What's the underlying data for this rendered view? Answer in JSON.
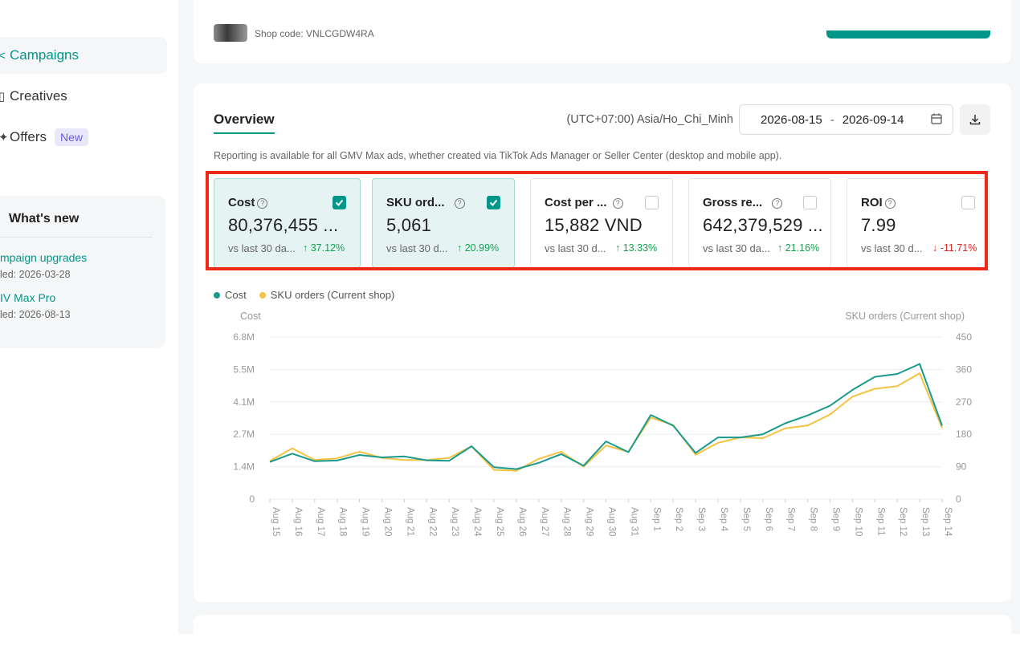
{
  "sidebar": {
    "nav": [
      {
        "label": "Campaigns",
        "icon": "campaign-icon"
      },
      {
        "label": "Creatives",
        "icon": "creatives-icon"
      },
      {
        "label": "Offers",
        "icon": "offers-icon",
        "badge": "New"
      }
    ],
    "whats_new": {
      "title": "What's new",
      "items": [
        {
          "link": "mpaign upgrades",
          "date": "led: 2026-03-28"
        },
        {
          "link": "IV Max Pro",
          "date": "led: 2026-08-13"
        }
      ]
    }
  },
  "shop": {
    "code_text": "Shop code: VNLCGDW4RA"
  },
  "overview": {
    "tab": "Overview",
    "timezone": "(UTC+07:00) Asia/Ho_Chi_Minh",
    "date_start": "2026-08-15",
    "date_sep": "-",
    "date_end": "2026-09-14",
    "note": "Reporting is available for all GMV Max ads, whether created via TikTok Ads Manager or Seller Center (desktop and mobile app)."
  },
  "metrics": [
    {
      "title": "Cost",
      "value": "80,376,455 ...",
      "compare": "vs last 30 da...",
      "delta": "37.12%",
      "direction": "up",
      "checked": true
    },
    {
      "title": "SKU ord...",
      "value": "5,061",
      "compare": "vs last 30 d...",
      "delta": "20.99%",
      "direction": "up",
      "checked": true
    },
    {
      "title": "Cost per ...",
      "value": "15,882 VND",
      "compare": "vs last 30 d...",
      "delta": "13.33%",
      "direction": "up",
      "checked": false
    },
    {
      "title": "Gross re...",
      "value": "642,379,529 ...",
      "compare": "vs last 30 da...",
      "delta": "21.16%",
      "direction": "up",
      "checked": false
    },
    {
      "title": "ROI",
      "value": "7.99",
      "compare": "vs last 30 d...",
      "delta": "-11.71%",
      "direction": "down",
      "checked": false
    }
  ],
  "colors": {
    "accent": "#00968a",
    "series_cost": "#1a9a8e",
    "series_sku": "#f5c242",
    "positive": "#12a150",
    "negative": "#d92a2a",
    "highlight": "#ee2a16"
  },
  "chart_data": {
    "type": "line",
    "legend": [
      "Cost",
      "SKU orders (Current shop)"
    ],
    "y_left_label": "Cost",
    "y_right_label": "SKU orders (Current shop)",
    "y_left_ticks": [
      "0",
      "1.4M",
      "2.7M",
      "4.1M",
      "5.5M",
      "6.8M"
    ],
    "y_right_ticks": [
      "0",
      "90",
      "180",
      "270",
      "360",
      "450"
    ],
    "y_left_max": 6.8,
    "y_right_max": 450,
    "x": [
      "Aug 15",
      "Aug 16",
      "Aug 17",
      "Aug 18",
      "Aug 19",
      "Aug 20",
      "Aug 21",
      "Aug 22",
      "Aug 23",
      "Aug 24",
      "Aug 25",
      "Aug 26",
      "Aug 27",
      "Aug 28",
      "Aug 29",
      "Aug 30",
      "Aug 31",
      "Sep 1",
      "Sep 2",
      "Sep 3",
      "Sep 4",
      "Sep 5",
      "Sep 6",
      "Sep 7",
      "Sep 8",
      "Sep 9",
      "Sep 10",
      "Sep 11",
      "Sep 12",
      "Sep 13",
      "Sep 14"
    ],
    "series": [
      {
        "name": "Cost",
        "axis": "left",
        "values": [
          1.56,
          1.91,
          1.59,
          1.62,
          1.85,
          1.75,
          1.79,
          1.63,
          1.61,
          2.22,
          1.34,
          1.26,
          1.52,
          1.89,
          1.4,
          2.42,
          1.97,
          3.53,
          3.08,
          1.94,
          2.59,
          2.59,
          2.72,
          3.18,
          3.51,
          3.92,
          4.58,
          5.13,
          5.25,
          5.67,
          3.08
        ]
      },
      {
        "name": "SKU orders (Current shop)",
        "axis": "left",
        "values": [
          1.6,
          2.13,
          1.64,
          1.71,
          1.99,
          1.73,
          1.64,
          1.64,
          1.73,
          2.22,
          1.23,
          1.19,
          1.69,
          1.99,
          1.36,
          2.25,
          1.98,
          3.42,
          3.11,
          1.86,
          2.36,
          2.59,
          2.56,
          2.97,
          3.09,
          3.55,
          4.3,
          4.63,
          4.74,
          5.28,
          2.99
        ]
      }
    ],
    "series_units_note": "",
    "grid": true
  }
}
